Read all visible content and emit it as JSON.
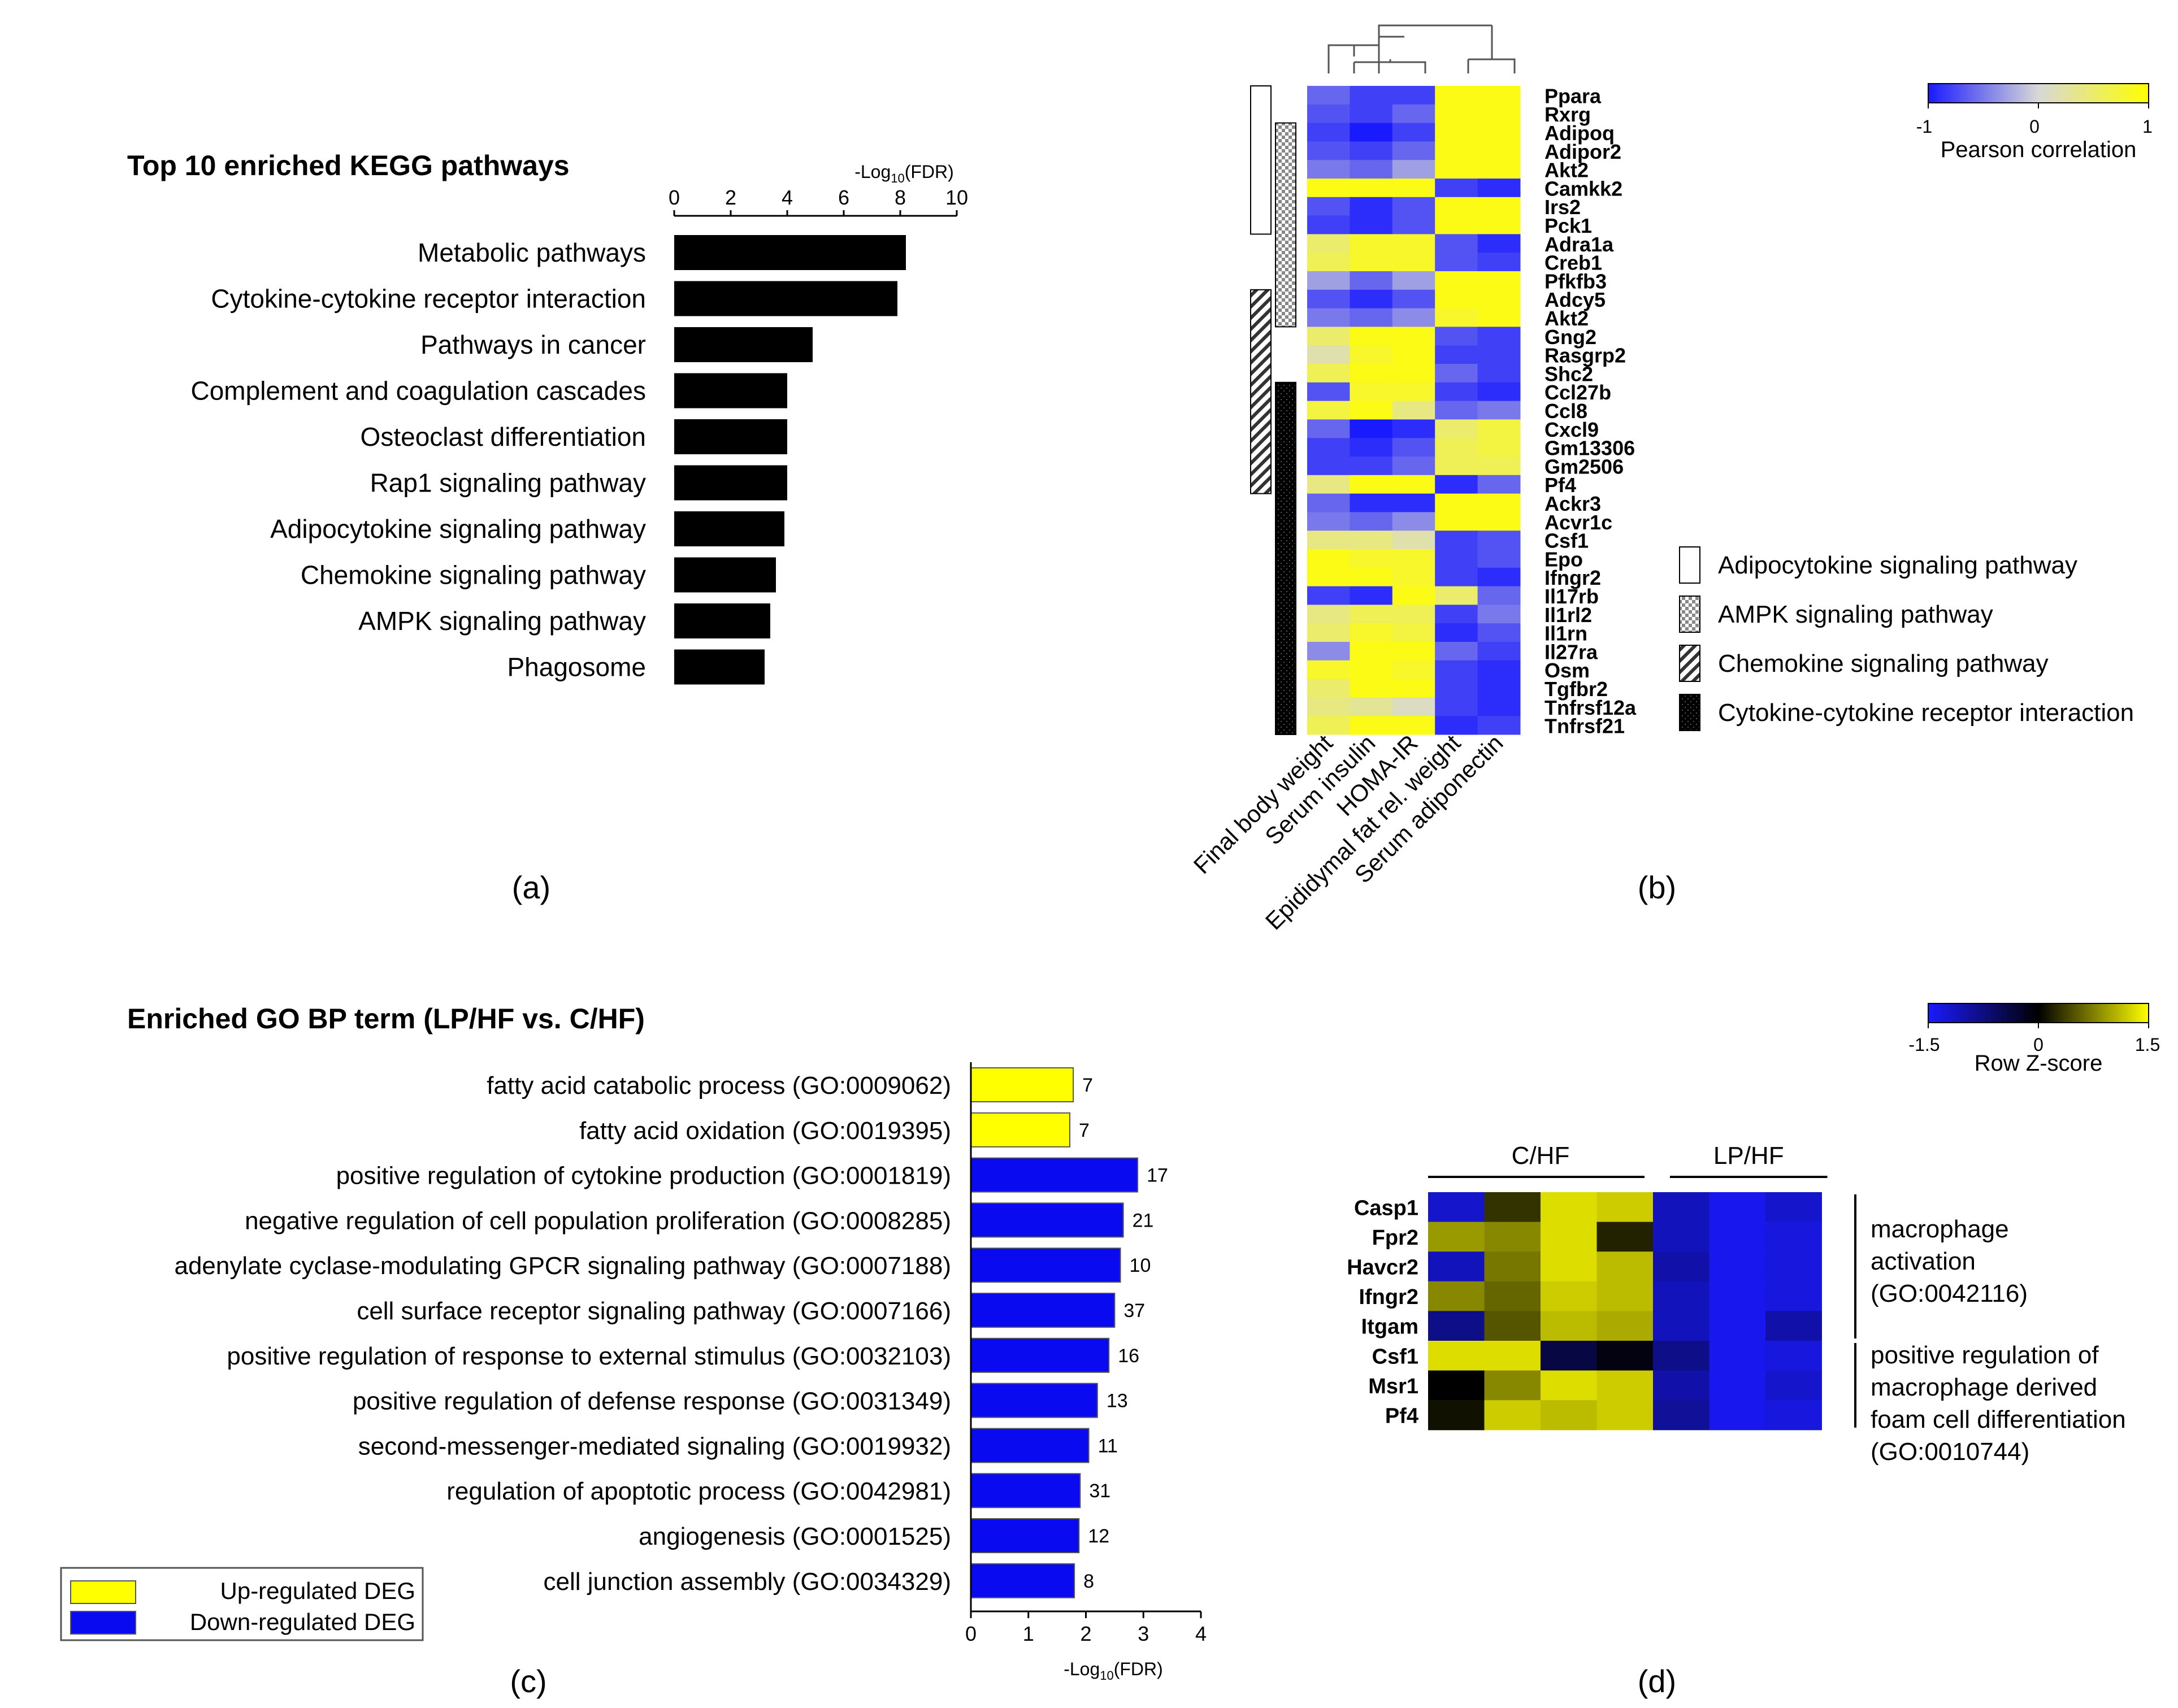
{
  "figure": {
    "panel_labels": [
      "(a)",
      "(b)",
      "(c)",
      "(d)"
    ]
  },
  "chart_data": [
    {
      "panel": "(a)",
      "type": "bar",
      "orientation": "horizontal",
      "title": "Top 10 enriched KEGG pathways",
      "xlabel_prefix": "-Log",
      "xlabel_sub": "10",
      "xlabel_suffix": "(FDR)",
      "xlim": [
        0,
        10
      ],
      "ticks": [
        "0",
        "2",
        "4",
        "6",
        "8",
        "10"
      ],
      "grid": false,
      "bar_color": "#000000",
      "categories": [
        "Metabolic pathways",
        "Cytokine-cytokine receptor interaction",
        "Pathways in cancer",
        "Complement and coagulation cascades",
        "Osteoclast differentiation",
        "Rap1 signaling pathway",
        "Adipocytokine signaling pathway",
        "Chemokine signaling pathway",
        "AMPK signaling pathway",
        "Phagosome"
      ],
      "values": [
        8.2,
        7.9,
        4.9,
        4.0,
        4.0,
        4.0,
        3.9,
        3.6,
        3.4,
        3.2
      ]
    },
    {
      "panel": "(b)",
      "type": "heatmap",
      "colorbar_label": "Pearson correlation",
      "colorbar_ticks": [
        "-1",
        "0",
        "1"
      ],
      "colorscale": [
        "#1a1aff",
        "#d8d8d8",
        "#ffff00"
      ],
      "vrange": [
        -1,
        1
      ],
      "columns": [
        "Final body weight",
        "Serum insulin",
        "HOMA-IR",
        "Epididymal fat rel. weight",
        "Serum adiponectin"
      ],
      "rows": [
        "Ppara",
        "Rxrg",
        "Adipoq",
        "Adipor2",
        "Akt2",
        "Camkk2",
        "Irs2",
        "Pck1",
        "Adra1a",
        "Creb1",
        "Pfkfb3",
        "Adcy5",
        "Akt2",
        "Gng2",
        "Rasgrp2",
        "Shc2",
        "Ccl27b",
        "Ccl8",
        "Cxcl9",
        "Gm13306",
        "Gm2506",
        "Pf4",
        "Ackr3",
        "Acvr1c",
        "Csf1",
        "Epo",
        "Ifngr2",
        "Il17rb",
        "Il1rl2",
        "Il1rn",
        "Il27ra",
        "Osm",
        "Tgfbr2",
        "Tnfrsf12a",
        "Tnfrsf21"
      ],
      "values": [
        [
          -0.6,
          -0.8,
          -0.8,
          0.9,
          0.9
        ],
        [
          -0.7,
          -0.8,
          -0.6,
          0.9,
          0.9
        ],
        [
          -0.8,
          -1.0,
          -0.8,
          0.9,
          0.9
        ],
        [
          -0.7,
          -0.8,
          -0.6,
          0.9,
          0.9
        ],
        [
          -0.5,
          -0.6,
          -0.3,
          0.9,
          0.9
        ],
        [
          0.9,
          0.9,
          0.9,
          -0.8,
          -0.9
        ],
        [
          -0.7,
          -0.9,
          -0.7,
          0.9,
          0.9
        ],
        [
          -0.8,
          -0.9,
          -0.7,
          0.9,
          0.9
        ],
        [
          0.5,
          0.8,
          0.8,
          -0.7,
          -0.9
        ],
        [
          0.6,
          0.8,
          0.8,
          -0.7,
          -0.8
        ],
        [
          -0.3,
          -0.6,
          -0.3,
          0.9,
          0.9
        ],
        [
          -0.7,
          -0.9,
          -0.7,
          0.9,
          0.9
        ],
        [
          -0.5,
          -0.6,
          -0.4,
          0.8,
          0.9
        ],
        [
          0.5,
          0.9,
          0.9,
          -0.7,
          -0.8
        ],
        [
          0.2,
          0.8,
          0.9,
          -0.8,
          -0.8
        ],
        [
          0.6,
          0.9,
          0.9,
          -0.6,
          -0.8
        ],
        [
          -0.7,
          0.8,
          0.8,
          -0.8,
          -0.9
        ],
        [
          0.7,
          0.9,
          0.4,
          -0.6,
          -0.5
        ],
        [
          -0.6,
          -1.0,
          -0.9,
          0.5,
          0.7
        ],
        [
          -0.8,
          -0.9,
          -0.7,
          0.6,
          0.7
        ],
        [
          -0.8,
          -0.8,
          -0.6,
          0.6,
          0.6
        ],
        [
          0.4,
          0.9,
          0.9,
          -0.9,
          -0.6
        ],
        [
          -0.6,
          -0.9,
          -0.9,
          0.9,
          0.9
        ],
        [
          -0.5,
          -0.6,
          -0.4,
          0.9,
          0.9
        ],
        [
          0.4,
          0.4,
          0.2,
          -0.8,
          -0.7
        ],
        [
          0.9,
          0.8,
          0.8,
          -0.8,
          -0.7
        ],
        [
          0.9,
          0.9,
          0.8,
          -0.8,
          -0.9
        ],
        [
          -0.8,
          -0.9,
          0.9,
          0.5,
          -0.6
        ],
        [
          0.4,
          0.6,
          0.6,
          -0.8,
          -0.5
        ],
        [
          0.5,
          0.8,
          0.7,
          -0.9,
          -0.7
        ],
        [
          -0.4,
          0.9,
          0.9,
          -0.6,
          -0.8
        ],
        [
          0.8,
          0.9,
          0.8,
          -0.8,
          -0.9
        ],
        [
          0.5,
          0.9,
          0.9,
          -0.8,
          -0.9
        ],
        [
          0.4,
          0.3,
          0.1,
          -0.8,
          -0.9
        ],
        [
          0.6,
          0.9,
          0.9,
          -0.9,
          -0.8
        ]
      ],
      "pathway_legend": [
        {
          "name": "Adipocytokine signaling pathway",
          "pattern": "white",
          "rows": [
            0,
            7
          ]
        },
        {
          "name": "AMPK signaling pathway",
          "pattern": "checker",
          "rows": [
            2,
            12
          ]
        },
        {
          "name": "Chemokine signaling pathway",
          "pattern": "hatch",
          "rows": [
            11,
            21
          ]
        },
        {
          "name": "Cytokine-cytokine receptor interaction",
          "pattern": "black",
          "rows": [
            16,
            34
          ]
        }
      ]
    },
    {
      "panel": "(c)",
      "type": "bar",
      "orientation": "horizontal",
      "title": "Enriched GO BP term (LP/HF vs. C/HF)",
      "xlabel_prefix": "-Log",
      "xlabel_sub": "10",
      "xlabel_suffix": "(FDR)",
      "xlim": [
        0,
        4
      ],
      "ticks": [
        "0",
        "1",
        "2",
        "3",
        "4"
      ],
      "grid": false,
      "colors": {
        "up": "#ffff00",
        "down": "#0a0af0"
      },
      "legend": {
        "up": "Up-regulated DEG",
        "down": "Down-regulated DEG"
      },
      "categories": [
        "fatty acid catabolic process (GO:0009062)",
        "fatty acid oxidation (GO:0019395)",
        "positive regulation of cytokine production (GO:0001819)",
        "negative regulation of cell population proliferation (GO:0008285)",
        "adenylate cyclase-modulating GPCR signaling pathway (GO:0007188)",
        "cell surface receptor signaling pathway (GO:0007166)",
        "positive regulation of response to external stimulus (GO:0032103)",
        "positive regulation of defense response (GO:0031349)",
        "second-messenger-mediated signaling (GO:0019932)",
        "regulation of apoptotic process (GO:0042981)",
        "angiogenesis (GO:0001525)",
        "cell junction assembly (GO:0034329)"
      ],
      "values": [
        1.78,
        1.72,
        2.9,
        2.65,
        2.6,
        2.5,
        2.4,
        2.2,
        2.05,
        1.9,
        1.88,
        1.8
      ],
      "direction": [
        "up",
        "up",
        "down",
        "down",
        "down",
        "down",
        "down",
        "down",
        "down",
        "down",
        "down",
        "down"
      ],
      "counts": [
        "7",
        "7",
        "17",
        "21",
        "10",
        "37",
        "16",
        "13",
        "11",
        "31",
        "12",
        "8"
      ]
    },
    {
      "panel": "(d)",
      "type": "heatmap",
      "colorbar_label": "Row Z-score",
      "colorbar_ticks": [
        "-1.5",
        "0",
        "1.5"
      ],
      "colorscale": [
        "#1a1aff",
        "#000000",
        "#ffff00"
      ],
      "vrange": [
        -1.5,
        1.5
      ],
      "groups": [
        {
          "name": "C/HF",
          "n": 4
        },
        {
          "name": "LP/HF",
          "n": 3
        }
      ],
      "rows": [
        "Casp1",
        "Fpr2",
        "Havcr2",
        "Ifngr2",
        "Itgam",
        "Csf1",
        "Msr1",
        "Pf4"
      ],
      "values": [
        [
          -1.2,
          0.3,
          1.3,
          1.2,
          -1.1,
          -1.4,
          -1.2
        ],
        [
          0.9,
          0.8,
          1.3,
          0.2,
          -1.1,
          -1.4,
          -1.3
        ],
        [
          -1.1,
          0.7,
          1.3,
          1.1,
          -1.0,
          -1.4,
          -1.3
        ],
        [
          0.8,
          0.6,
          1.2,
          1.1,
          -1.1,
          -1.4,
          -1.3
        ],
        [
          -0.8,
          0.5,
          1.1,
          1.0,
          -1.1,
          -1.4,
          -1.0
        ],
        [
          1.3,
          1.3,
          -0.4,
          -0.1,
          -0.8,
          -1.4,
          -1.3
        ],
        [
          0.0,
          0.8,
          1.3,
          1.2,
          -1.0,
          -1.4,
          -1.2
        ],
        [
          0.1,
          1.2,
          1.1,
          1.2,
          -0.9,
          -1.4,
          -1.3
        ]
      ],
      "row_groups": [
        {
          "label": [
            "macrophage",
            "activation",
            "(GO:0042116)"
          ],
          "rows": [
            0,
            4
          ]
        },
        {
          "label": [
            "positive regulation of",
            "macrophage derived",
            "foam cell differentiation",
            "(GO:0010744)"
          ],
          "rows": [
            5,
            7
          ]
        }
      ]
    }
  ]
}
